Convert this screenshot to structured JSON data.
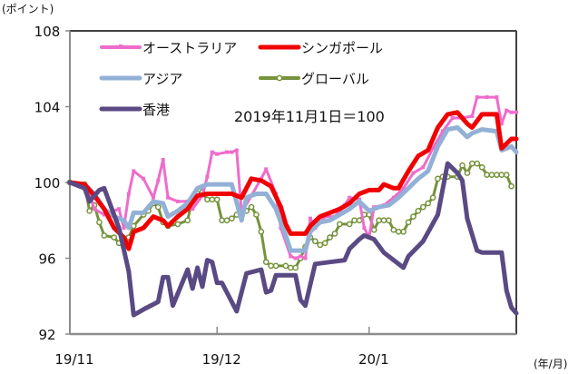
{
  "chart_data": {
    "type": "line",
    "title": "",
    "ylabel": "(ポイント)",
    "xlabel": "(年/月)",
    "annotation": "2019年11月1日＝100",
    "ylim": [
      92,
      108
    ],
    "yticks": [
      92,
      96,
      100,
      104,
      108
    ],
    "ytick_labels": [
      "92",
      "96",
      "100",
      "104",
      "108"
    ],
    "x_unit": "days since 2019-11-01",
    "xlim": [
      0,
      91
    ],
    "xticks": [
      0,
      30,
      61
    ],
    "xtick_labels": [
      "19/11",
      "19/12",
      "20/1"
    ],
    "grid": false,
    "legend_position": "top-left (inside plot)",
    "series": [
      {
        "name": "オーストラリア",
        "color": "#ee6ccb",
        "marker": "square-small",
        "width": 3,
        "points": [
          [
            0,
            100
          ],
          [
            3,
            99.9
          ],
          [
            4,
            99.4
          ],
          [
            5,
            98.6
          ],
          [
            7,
            98.3
          ],
          [
            10,
            98.6
          ],
          [
            11,
            97.6
          ],
          [
            12,
            99.4
          ],
          [
            13,
            100.6
          ],
          [
            15,
            100.2
          ],
          [
            17,
            99.2
          ],
          [
            18,
            100.1
          ],
          [
            19,
            101.2
          ],
          [
            20,
            99.2
          ],
          [
            22,
            99
          ],
          [
            24,
            99
          ],
          [
            25,
            98.6
          ],
          [
            27,
            99.3
          ],
          [
            28,
            100.3
          ],
          [
            29,
            101.6
          ],
          [
            30,
            101.5
          ],
          [
            32,
            101.6
          ],
          [
            33,
            101.6
          ],
          [
            34,
            101.7
          ],
          [
            35,
            98.4
          ],
          [
            37,
            99.3
          ],
          [
            39,
            100.2
          ],
          [
            40,
            100.7
          ],
          [
            42,
            99.4
          ],
          [
            43,
            97.6
          ],
          [
            45,
            96.1
          ],
          [
            46,
            96
          ],
          [
            47,
            96.1
          ],
          [
            48,
            96
          ],
          [
            49,
            98.1
          ],
          [
            50,
            97.6
          ],
          [
            52,
            98.2
          ],
          [
            54,
            98.2
          ],
          [
            56,
            98.8
          ],
          [
            57,
            99.2
          ],
          [
            59,
            99.1
          ],
          [
            60,
            97.6
          ],
          [
            61,
            97.1
          ],
          [
            62,
            98.7
          ],
          [
            64,
            98.8
          ],
          [
            66,
            99.2
          ],
          [
            68,
            99.7
          ],
          [
            70,
            100.5
          ],
          [
            72,
            100.8
          ],
          [
            74,
            101.8
          ],
          [
            76,
            102.7
          ],
          [
            78,
            103.4
          ],
          [
            80,
            103.4
          ],
          [
            82,
            103.5
          ],
          [
            83,
            104.5
          ],
          [
            85,
            104.5
          ],
          [
            87,
            104.5
          ],
          [
            88,
            103.1
          ],
          [
            89,
            103.8
          ],
          [
            90,
            103.7
          ],
          [
            91,
            103.7
          ]
        ]
      },
      {
        "name": "シンガポール",
        "color": "#f00000",
        "marker": "none",
        "width": 5,
        "points": [
          [
            0,
            100
          ],
          [
            3,
            99.9
          ],
          [
            5,
            99.3
          ],
          [
            7,
            98.6
          ],
          [
            9,
            97.6
          ],
          [
            11,
            97.1
          ],
          [
            12,
            96.5
          ],
          [
            13,
            97.4
          ],
          [
            15,
            97.6
          ],
          [
            17,
            98.2
          ],
          [
            19,
            98
          ],
          [
            20,
            97.7
          ],
          [
            22,
            98.2
          ],
          [
            24,
            98.6
          ],
          [
            26,
            99.3
          ],
          [
            28,
            99.4
          ],
          [
            30,
            99.4
          ],
          [
            33,
            99.4
          ],
          [
            35,
            99.2
          ],
          [
            37,
            100.2
          ],
          [
            39,
            100.1
          ],
          [
            41,
            99.8
          ],
          [
            43,
            98.7
          ],
          [
            44,
            97.8
          ],
          [
            45,
            97.3
          ],
          [
            48,
            97.3
          ],
          [
            49,
            97.7
          ],
          [
            51,
            98.2
          ],
          [
            53,
            98.4
          ],
          [
            55,
            98.6
          ],
          [
            57,
            98.9
          ],
          [
            59,
            99.4
          ],
          [
            61,
            99.6
          ],
          [
            63,
            99.6
          ],
          [
            64,
            99.9
          ],
          [
            66,
            99.7
          ],
          [
            67,
            99.7
          ],
          [
            69,
            100.6
          ],
          [
            71,
            101.4
          ],
          [
            73,
            101.7
          ],
          [
            75,
            102.9
          ],
          [
            77,
            103.6
          ],
          [
            79,
            103.7
          ],
          [
            81,
            103.1
          ],
          [
            82,
            102.9
          ],
          [
            84,
            103.6
          ],
          [
            87,
            103.6
          ],
          [
            88,
            101.8
          ],
          [
            90,
            102.3
          ],
          [
            91,
            102.3
          ]
        ]
      },
      {
        "name": "アジア",
        "color": "#93b1d6",
        "marker": "none",
        "width": 5,
        "points": [
          [
            0,
            100
          ],
          [
            3,
            99.9
          ],
          [
            5,
            99.4
          ],
          [
            7,
            98.6
          ],
          [
            9,
            98.2
          ],
          [
            11,
            98
          ],
          [
            12,
            97.6
          ],
          [
            13,
            98.4
          ],
          [
            15,
            98.4
          ],
          [
            17,
            99
          ],
          [
            19,
            98.9
          ],
          [
            20,
            98.2
          ],
          [
            22,
            98.5
          ],
          [
            24,
            98.9
          ],
          [
            26,
            99.7
          ],
          [
            28,
            99.9
          ],
          [
            30,
            99.9
          ],
          [
            33,
            99.9
          ],
          [
            35,
            98
          ],
          [
            36,
            99.2
          ],
          [
            38,
            99.4
          ],
          [
            40,
            99.4
          ],
          [
            42,
            98.6
          ],
          [
            44,
            97.2
          ],
          [
            45,
            96.4
          ],
          [
            48,
            96.4
          ],
          [
            49,
            97.4
          ],
          [
            51,
            97.9
          ],
          [
            53,
            98
          ],
          [
            55,
            98.3
          ],
          [
            57,
            98.6
          ],
          [
            59,
            99
          ],
          [
            61,
            98.5
          ],
          [
            63,
            98.7
          ],
          [
            65,
            98.8
          ],
          [
            67,
            99.2
          ],
          [
            69,
            99.7
          ],
          [
            71,
            100.2
          ],
          [
            73,
            100.6
          ],
          [
            75,
            101.9
          ],
          [
            77,
            102.8
          ],
          [
            79,
            102.9
          ],
          [
            81,
            102.4
          ],
          [
            82,
            102.6
          ],
          [
            84,
            102.8
          ],
          [
            87,
            102.7
          ],
          [
            88,
            101.7
          ],
          [
            90,
            101.9
          ],
          [
            91,
            101.6
          ]
        ]
      },
      {
        "name": "グローバル",
        "color": "#76923c",
        "marker": "circle-open",
        "width": 3,
        "points": [
          [
            0,
            100
          ],
          [
            3,
            99.9
          ],
          [
            4,
            98.5
          ],
          [
            5,
            98.8
          ],
          [
            6,
            97.9
          ],
          [
            7,
            97.2
          ],
          [
            9,
            97.1
          ],
          [
            10,
            96.8
          ],
          [
            11,
            96.6
          ],
          [
            12,
            97.1
          ],
          [
            13,
            97.7
          ],
          [
            15,
            98.3
          ],
          [
            16,
            98.5
          ],
          [
            17,
            98.9
          ],
          [
            18,
            98.7
          ],
          [
            19,
            97.9
          ],
          [
            20,
            97.7
          ],
          [
            22,
            97.8
          ],
          [
            24,
            98
          ],
          [
            25,
            99.2
          ],
          [
            26,
            99.4
          ],
          [
            27,
            99.5
          ],
          [
            28,
            99.1
          ],
          [
            29,
            99.1
          ],
          [
            30,
            99.1
          ],
          [
            31,
            98
          ],
          [
            32,
            98
          ],
          [
            33,
            98.1
          ],
          [
            34,
            98.3
          ],
          [
            35,
            98.5
          ],
          [
            36,
            98.5
          ],
          [
            37,
            98.7
          ],
          [
            38,
            98.3
          ],
          [
            39,
            97.4
          ],
          [
            40,
            95.8
          ],
          [
            41,
            95.6
          ],
          [
            42,
            95.6
          ],
          [
            44,
            95.6
          ],
          [
            45,
            95.5
          ],
          [
            46,
            95.5
          ],
          [
            47,
            96
          ],
          [
            48,
            96.6
          ],
          [
            49,
            97.1
          ],
          [
            50,
            96.9
          ],
          [
            51,
            96.7
          ],
          [
            52,
            96.8
          ],
          [
            53,
            97.1
          ],
          [
            54,
            97.3
          ],
          [
            55,
            97.8
          ],
          [
            57,
            97.8
          ],
          [
            58,
            98
          ],
          [
            59,
            98
          ],
          [
            60,
            98.3
          ],
          [
            61,
            98.3
          ],
          [
            62,
            97.5
          ],
          [
            63,
            98
          ],
          [
            64,
            98
          ],
          [
            65,
            98
          ],
          [
            66,
            97.5
          ],
          [
            67,
            97.4
          ],
          [
            68,
            97.4
          ],
          [
            69,
            97.9
          ],
          [
            70,
            98.2
          ],
          [
            71,
            98.5
          ],
          [
            72,
            98.7
          ],
          [
            73,
            98.9
          ],
          [
            74,
            99.2
          ],
          [
            75,
            100.2
          ],
          [
            76,
            100.3
          ],
          [
            77,
            100.3
          ],
          [
            79,
            100.3
          ],
          [
            80,
            100.9
          ],
          [
            81,
            100.5
          ],
          [
            82,
            101
          ],
          [
            83,
            101
          ],
          [
            84,
            100.8
          ],
          [
            85,
            100.4
          ],
          [
            86,
            100.4
          ],
          [
            87,
            100.4
          ],
          [
            88,
            100.4
          ],
          [
            89,
            100.4
          ],
          [
            90,
            99.8
          ]
        ]
      },
      {
        "name": "香港",
        "color": "#5a4a84",
        "marker": "none",
        "width": 5,
        "points": [
          [
            0,
            100
          ],
          [
            3,
            99.7
          ],
          [
            4,
            99
          ],
          [
            6,
            99.6
          ],
          [
            7,
            99.7
          ],
          [
            10,
            97.6
          ],
          [
            12,
            95.3
          ],
          [
            13,
            93
          ],
          [
            15,
            93.3
          ],
          [
            18,
            93.7
          ],
          [
            19,
            95
          ],
          [
            20,
            95
          ],
          [
            21,
            93.5
          ],
          [
            24,
            95.4
          ],
          [
            25,
            94.4
          ],
          [
            26,
            95.5
          ],
          [
            27,
            94.5
          ],
          [
            28,
            95.9
          ],
          [
            29,
            95.8
          ],
          [
            30,
            94.7
          ],
          [
            31,
            94.7
          ],
          [
            34,
            93.2
          ],
          [
            36,
            95.2
          ],
          [
            39,
            95.4
          ],
          [
            40,
            94.2
          ],
          [
            41,
            94.3
          ],
          [
            42,
            95.1
          ],
          [
            46,
            95.1
          ],
          [
            47,
            93.8
          ],
          [
            48,
            93.5
          ],
          [
            50,
            95.7
          ],
          [
            53,
            95.8
          ],
          [
            56,
            95.9
          ],
          [
            57,
            96.5
          ],
          [
            59,
            97
          ],
          [
            60,
            97.2
          ],
          [
            62,
            97
          ],
          [
            64,
            96.3
          ],
          [
            68,
            95.5
          ],
          [
            69,
            96.1
          ],
          [
            72,
            96.9
          ],
          [
            75,
            98.3
          ],
          [
            77,
            101
          ],
          [
            79,
            100.5
          ],
          [
            80,
            100.1
          ],
          [
            81,
            98.1
          ],
          [
            83,
            96.4
          ],
          [
            84,
            96.3
          ],
          [
            88,
            96.3
          ],
          [
            89,
            94.3
          ],
          [
            90,
            93.4
          ],
          [
            91,
            93.1
          ]
        ]
      }
    ]
  }
}
